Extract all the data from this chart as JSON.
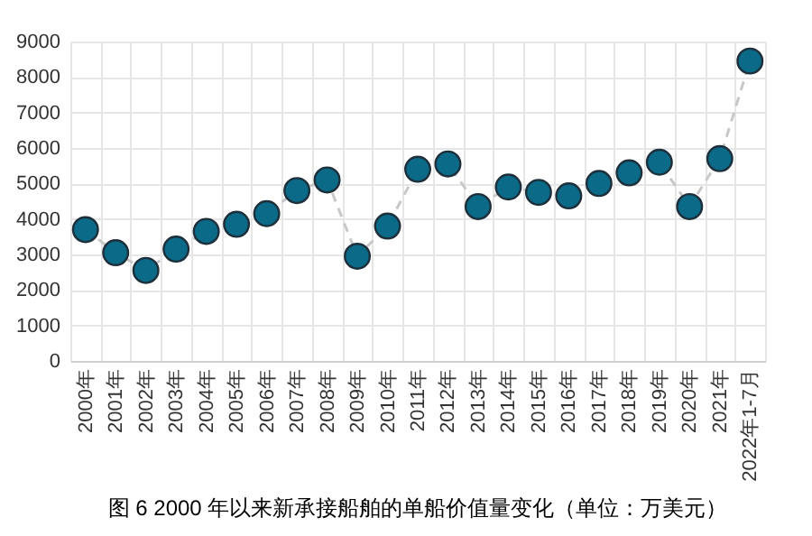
{
  "chart_data": {
    "type": "line",
    "title": "图 6 2000 年以来新承接船舶的单船价值量变化（单位：万美元）",
    "categories": [
      "2000年",
      "2001年",
      "2002年",
      "2003年",
      "2004年",
      "2005年",
      "2006年",
      "2007年",
      "2008年",
      "2009年",
      "2010年",
      "2011年",
      "2012年",
      "2013年",
      "2014年",
      "2015年",
      "2016年",
      "2017年",
      "2018年",
      "2019年",
      "2020年",
      "2021年",
      "2022年1-7月"
    ],
    "series": [
      {
        "color": "#0b6a87",
        "values": [
          3700,
          3050,
          2550,
          3150,
          3650,
          3850,
          4150,
          4800,
          5100,
          2950,
          3800,
          5400,
          5550,
          4350,
          4900,
          4750,
          4650,
          5000,
          5300,
          5600,
          4350,
          5700,
          8450
        ]
      }
    ],
    "ylim": [
      0,
      9000
    ],
    "yticks": [
      0,
      1000,
      2000,
      3000,
      4000,
      5000,
      6000,
      7000,
      8000,
      9000
    ],
    "grid": true,
    "legend": false,
    "marker": "circle",
    "line_style": "dashed"
  }
}
